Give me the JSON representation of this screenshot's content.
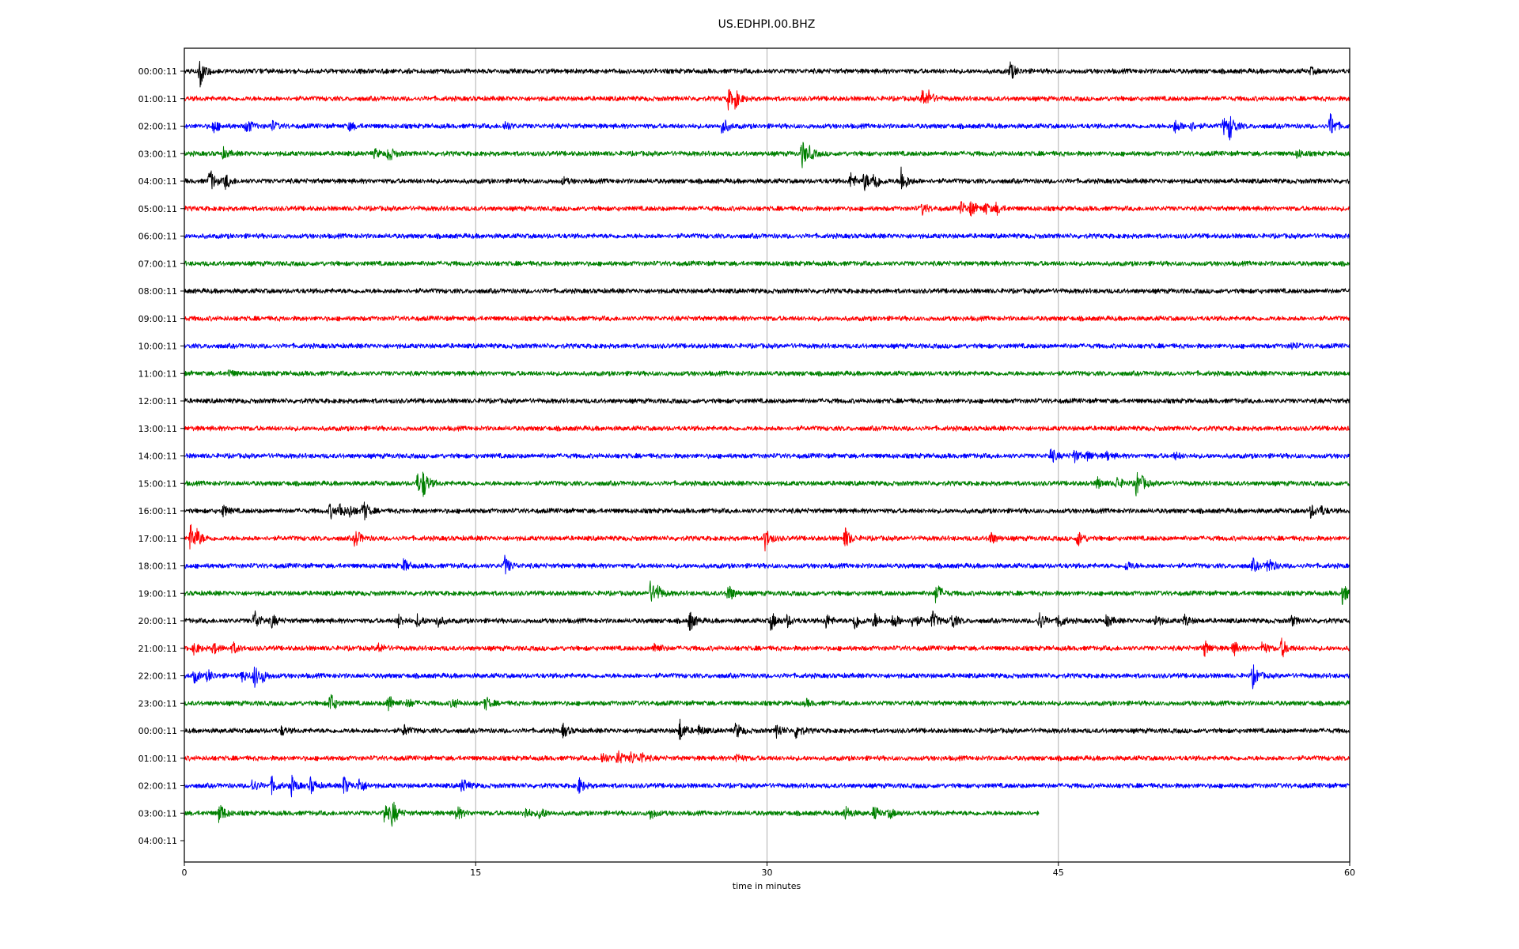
{
  "chart_data": {
    "type": "line",
    "title": "US.EDHPI.00.BHZ",
    "xlabel": "time in minutes",
    "ylabel": "",
    "xlim": [
      0,
      60
    ],
    "x_ticks": [
      0,
      15,
      30,
      45,
      60
    ],
    "x_tick_labels": [
      "0",
      "15",
      "30",
      "45",
      "60"
    ],
    "grid": "vertical lines at x ticks",
    "colors": [
      "#000000",
      "#ff0000",
      "#0000ff",
      "#008000"
    ],
    "traces": [
      {
        "label": "00:00:11",
        "color": "#000000",
        "end_minute": 60,
        "events": [
          {
            "t": 0.8,
            "amp": 20
          },
          {
            "t": 42.5,
            "amp": 12
          },
          {
            "t": 58,
            "amp": 4
          }
        ]
      },
      {
        "label": "01:00:11",
        "color": "#ff0000",
        "end_minute": 60,
        "events": [
          {
            "t": 28,
            "amp": 12
          },
          {
            "t": 28.3,
            "amp": 15
          },
          {
            "t": 38,
            "amp": 12
          },
          {
            "t": 38.3,
            "amp": 10
          }
        ]
      },
      {
        "label": "02:00:11",
        "color": "#0000ff",
        "end_minute": 60,
        "events": [
          {
            "t": 1.5,
            "amp": 8
          },
          {
            "t": 3.2,
            "amp": 10
          },
          {
            "t": 4.5,
            "amp": 6
          },
          {
            "t": 8.5,
            "amp": 5
          },
          {
            "t": 16.5,
            "amp": 6
          },
          {
            "t": 27.7,
            "amp": 11
          },
          {
            "t": 51,
            "amp": 8
          },
          {
            "t": 51.8,
            "amp": 6
          },
          {
            "t": 53.5,
            "amp": 10
          },
          {
            "t": 53.8,
            "amp": 18
          },
          {
            "t": 59,
            "amp": 16
          }
        ]
      },
      {
        "label": "03:00:11",
        "color": "#008000",
        "end_minute": 60,
        "events": [
          {
            "t": 2,
            "amp": 6
          },
          {
            "t": 9.8,
            "amp": 5
          },
          {
            "t": 10.5,
            "amp": 10
          },
          {
            "t": 31.8,
            "amp": 18
          },
          {
            "t": 32.2,
            "amp": 8
          },
          {
            "t": 57.3,
            "amp": 5
          }
        ]
      },
      {
        "label": "04:00:11",
        "color": "#000000",
        "end_minute": 60,
        "events": [
          {
            "t": 1.3,
            "amp": 15
          },
          {
            "t": 2.1,
            "amp": 10
          },
          {
            "t": 19.5,
            "amp": 4
          },
          {
            "t": 34.3,
            "amp": 10
          },
          {
            "t": 35,
            "amp": 12
          },
          {
            "t": 35.5,
            "amp": 14
          },
          {
            "t": 36.9,
            "amp": 18
          }
        ]
      },
      {
        "label": "05:00:11",
        "color": "#ff0000",
        "end_minute": 60,
        "events": [
          {
            "t": 38,
            "amp": 7
          },
          {
            "t": 40,
            "amp": 8
          },
          {
            "t": 40.5,
            "amp": 10
          },
          {
            "t": 41.2,
            "amp": 8
          },
          {
            "t": 41.8,
            "amp": 7
          }
        ]
      },
      {
        "label": "06:00:11",
        "color": "#0000ff",
        "end_minute": 60,
        "events": []
      },
      {
        "label": "07:00:11",
        "color": "#008000",
        "end_minute": 60,
        "events": []
      },
      {
        "label": "08:00:11",
        "color": "#000000",
        "end_minute": 60,
        "events": []
      },
      {
        "label": "09:00:11",
        "color": "#ff0000",
        "end_minute": 60,
        "events": []
      },
      {
        "label": "10:00:11",
        "color": "#0000ff",
        "end_minute": 60,
        "events": [
          {
            "t": 57,
            "amp": 4
          }
        ]
      },
      {
        "label": "11:00:11",
        "color": "#008000",
        "end_minute": 60,
        "events": [
          {
            "t": 2.3,
            "amp": 4
          }
        ]
      },
      {
        "label": "12:00:11",
        "color": "#000000",
        "end_minute": 60,
        "events": []
      },
      {
        "label": "13:00:11",
        "color": "#ff0000",
        "end_minute": 60,
        "events": []
      },
      {
        "label": "14:00:11",
        "color": "#0000ff",
        "end_minute": 60,
        "events": [
          {
            "t": 44.6,
            "amp": 10
          },
          {
            "t": 45.8,
            "amp": 8
          },
          {
            "t": 46.5,
            "amp": 6
          },
          {
            "t": 47.5,
            "amp": 5
          },
          {
            "t": 51,
            "amp": 4
          }
        ]
      },
      {
        "label": "15:00:11",
        "color": "#008000",
        "end_minute": 60,
        "events": [
          {
            "t": 12,
            "amp": 12
          },
          {
            "t": 12.3,
            "amp": 18
          },
          {
            "t": 47,
            "amp": 7
          },
          {
            "t": 48,
            "amp": 8
          },
          {
            "t": 49,
            "amp": 16
          },
          {
            "t": 49.3,
            "amp": 8
          }
        ]
      },
      {
        "label": "16:00:11",
        "color": "#000000",
        "end_minute": 60,
        "events": [
          {
            "t": 2,
            "amp": 7
          },
          {
            "t": 7.5,
            "amp": 9
          },
          {
            "t": 8,
            "amp": 10
          },
          {
            "t": 8.5,
            "amp": 8
          },
          {
            "t": 9.2,
            "amp": 14
          },
          {
            "t": 58,
            "amp": 8
          },
          {
            "t": 58.5,
            "amp": 6
          }
        ]
      },
      {
        "label": "17:00:11",
        "color": "#ff0000",
        "end_minute": 60,
        "events": [
          {
            "t": 0.3,
            "amp": 18
          },
          {
            "t": 0.6,
            "amp": 14
          },
          {
            "t": 8.8,
            "amp": 12
          },
          {
            "t": 29.9,
            "amp": 14
          },
          {
            "t": 34,
            "amp": 14
          },
          {
            "t": 41.5,
            "amp": 8
          },
          {
            "t": 46,
            "amp": 10
          }
        ]
      },
      {
        "label": "18:00:11",
        "color": "#0000ff",
        "end_minute": 60,
        "events": [
          {
            "t": 11.3,
            "amp": 8
          },
          {
            "t": 16.5,
            "amp": 12
          },
          {
            "t": 48.5,
            "amp": 6
          },
          {
            "t": 55,
            "amp": 8
          },
          {
            "t": 55.8,
            "amp": 12
          }
        ]
      },
      {
        "label": "19:00:11",
        "color": "#008000",
        "end_minute": 60,
        "events": [
          {
            "t": 24,
            "amp": 14
          },
          {
            "t": 24.3,
            "amp": 12
          },
          {
            "t": 28,
            "amp": 12
          },
          {
            "t": 38.7,
            "amp": 14
          },
          {
            "t": 59.6,
            "amp": 14
          }
        ]
      },
      {
        "label": "20:00:11",
        "color": "#000000",
        "end_minute": 60,
        "events": [
          {
            "t": 3.6,
            "amp": 14
          },
          {
            "t": 4.5,
            "amp": 8
          },
          {
            "t": 11,
            "amp": 8
          },
          {
            "t": 12,
            "amp": 8
          },
          {
            "t": 13,
            "amp": 8
          },
          {
            "t": 26,
            "amp": 14
          },
          {
            "t": 30.2,
            "amp": 12
          },
          {
            "t": 31,
            "amp": 8
          },
          {
            "t": 33,
            "amp": 10
          },
          {
            "t": 34.5,
            "amp": 12
          },
          {
            "t": 35.5,
            "amp": 10
          },
          {
            "t": 36.5,
            "amp": 10
          },
          {
            "t": 37.5,
            "amp": 10
          },
          {
            "t": 38.5,
            "amp": 12
          },
          {
            "t": 39.5,
            "amp": 10
          },
          {
            "t": 44,
            "amp": 12
          },
          {
            "t": 45,
            "amp": 10
          },
          {
            "t": 47.5,
            "amp": 8
          },
          {
            "t": 50,
            "amp": 8
          },
          {
            "t": 51.5,
            "amp": 7
          },
          {
            "t": 57,
            "amp": 6
          }
        ]
      },
      {
        "label": "21:00:11",
        "color": "#ff0000",
        "end_minute": 60,
        "events": [
          {
            "t": 0.5,
            "amp": 7
          },
          {
            "t": 1.5,
            "amp": 7
          },
          {
            "t": 2.5,
            "amp": 7
          },
          {
            "t": 10,
            "amp": 6
          },
          {
            "t": 24.2,
            "amp": 8
          },
          {
            "t": 52.5,
            "amp": 10
          },
          {
            "t": 54,
            "amp": 9
          },
          {
            "t": 55.5,
            "amp": 8
          },
          {
            "t": 56.5,
            "amp": 12
          }
        ]
      },
      {
        "label": "22:00:11",
        "color": "#0000ff",
        "end_minute": 60,
        "events": [
          {
            "t": 0.5,
            "amp": 8
          },
          {
            "t": 1.2,
            "amp": 7
          },
          {
            "t": 3,
            "amp": 7
          },
          {
            "t": 3.6,
            "amp": 14
          },
          {
            "t": 4,
            "amp": 8
          },
          {
            "t": 55,
            "amp": 14
          }
        ]
      },
      {
        "label": "23:00:11",
        "color": "#008000",
        "end_minute": 60,
        "events": [
          {
            "t": 7.5,
            "amp": 14
          },
          {
            "t": 10.5,
            "amp": 12
          },
          {
            "t": 11.5,
            "amp": 6
          },
          {
            "t": 13.8,
            "amp": 7
          },
          {
            "t": 15.5,
            "amp": 8
          },
          {
            "t": 32,
            "amp": 4
          }
        ]
      },
      {
        "label": "00:00:11",
        "color": "#000000",
        "end_minute": 60,
        "events": [
          {
            "t": 5,
            "amp": 5
          },
          {
            "t": 11.3,
            "amp": 7
          },
          {
            "t": 19.5,
            "amp": 8
          },
          {
            "t": 25.5,
            "amp": 14
          },
          {
            "t": 26.5,
            "amp": 6
          },
          {
            "t": 28.4,
            "amp": 10
          },
          {
            "t": 30.5,
            "amp": 9
          },
          {
            "t": 31.5,
            "amp": 10
          }
        ]
      },
      {
        "label": "01:00:11",
        "color": "#ff0000",
        "end_minute": 60,
        "events": [
          {
            "t": 21.5,
            "amp": 8
          },
          {
            "t": 22.3,
            "amp": 10
          },
          {
            "t": 23,
            "amp": 8
          },
          {
            "t": 23.5,
            "amp": 7
          },
          {
            "t": 28.4,
            "amp": 6
          }
        ]
      },
      {
        "label": "02:00:11",
        "color": "#0000ff",
        "end_minute": 60,
        "events": [
          {
            "t": 3.5,
            "amp": 8
          },
          {
            "t": 4.5,
            "amp": 10
          },
          {
            "t": 5.5,
            "amp": 12
          },
          {
            "t": 6.5,
            "amp": 10
          },
          {
            "t": 8.2,
            "amp": 12
          },
          {
            "t": 9,
            "amp": 10
          },
          {
            "t": 14.3,
            "amp": 10
          },
          {
            "t": 20.3,
            "amp": 10
          }
        ]
      },
      {
        "label": "03:00:11",
        "color": "#008000",
        "end_minute": 44,
        "events": [
          {
            "t": 1.8,
            "amp": 14
          },
          {
            "t": 10.3,
            "amp": 14
          },
          {
            "t": 10.7,
            "amp": 18
          },
          {
            "t": 14,
            "amp": 10
          },
          {
            "t": 17.5,
            "amp": 8
          },
          {
            "t": 18.3,
            "amp": 8
          },
          {
            "t": 24,
            "amp": 7
          },
          {
            "t": 34,
            "amp": 10
          },
          {
            "t": 35.5,
            "amp": 8
          },
          {
            "t": 36.3,
            "amp": 6
          }
        ]
      },
      {
        "label": "04:00:11",
        "color": "#000000",
        "end_minute": 0,
        "events": []
      }
    ]
  }
}
